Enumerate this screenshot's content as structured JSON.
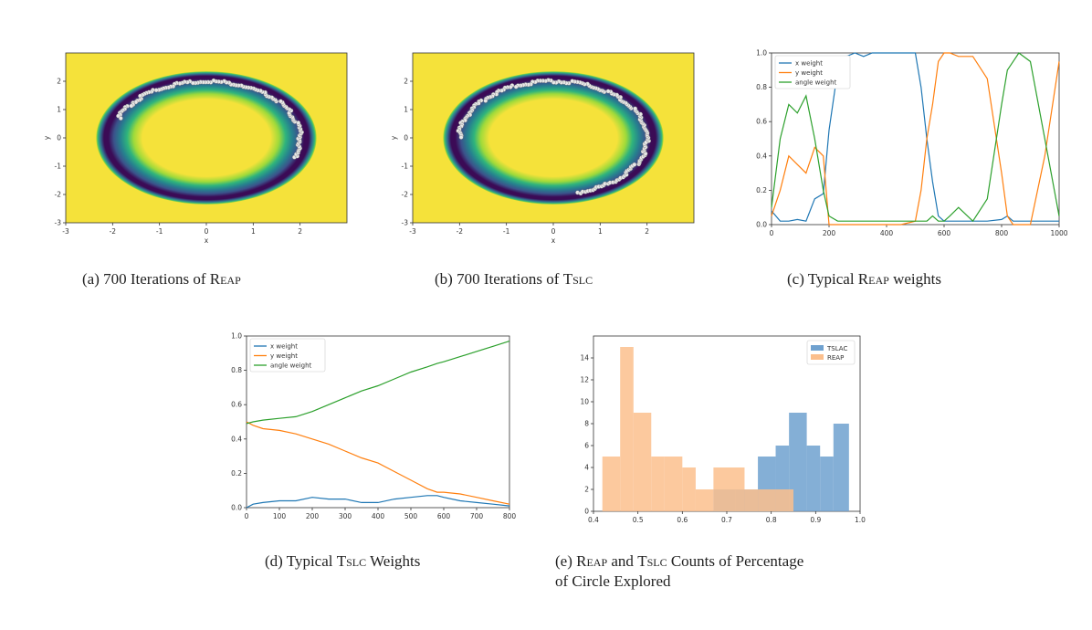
{
  "captions": {
    "a": {
      "prefix": "(a)  700 Iterations of ",
      "method": "Reap"
    },
    "b": {
      "prefix": "(b)  700 Iterations of ",
      "method": "Tslc"
    },
    "c": {
      "prefix": "(c)  Typical ",
      "method": "Reap",
      "suffix": " weights"
    },
    "d": {
      "prefix": "(d)  Typical ",
      "method": "Tslc",
      "suffix": " Weights"
    },
    "e": {
      "method1": "Reap",
      "mid": " and ",
      "method2": "Tslc",
      "line1_suffix": " Counts of Percentage",
      "line2": "of Circle Explored"
    }
  },
  "colors": {
    "x": "#1f77b4",
    "y": "#ff7f0e",
    "angle": "#2ca02c",
    "tslac_bar": "#6fa1cf",
    "reap_bar": "#fbbf8d",
    "field_bg": "#f5e23a",
    "ring": "#3b0b56"
  },
  "chart_data": [
    {
      "id": "a",
      "type": "scatter",
      "xlabel": "x",
      "ylabel": "y",
      "xlim": [
        -3,
        3
      ],
      "ylim": [
        -3,
        3
      ],
      "xticks": [
        -3,
        -2,
        -1,
        0,
        1,
        2
      ],
      "yticks": [
        -3,
        -2,
        -1,
        0,
        1,
        2
      ],
      "background": "energy field with ring-shaped low-energy region of radius 2",
      "arc_deg": [
        -20,
        160
      ]
    },
    {
      "id": "b",
      "type": "scatter",
      "xlabel": "x",
      "ylabel": "y",
      "xlim": [
        -3,
        3
      ],
      "ylim": [
        -3,
        3
      ],
      "xticks": [
        -3,
        -2,
        -1,
        0,
        1,
        2
      ],
      "yticks": [
        -3,
        -2,
        -1,
        0,
        1,
        2
      ],
      "background": "energy field with ring-shaped low-energy region of radius 2",
      "arc_deg": [
        -75,
        180
      ]
    },
    {
      "id": "c",
      "type": "line",
      "xlim": [
        0,
        1000
      ],
      "ylim": [
        0,
        1
      ],
      "xticks": [
        0,
        200,
        400,
        600,
        800,
        1000
      ],
      "yticks": [
        0.0,
        0.2,
        0.4,
        0.6,
        0.8,
        1.0
      ],
      "legend_loc": "top-left",
      "series": [
        {
          "name": "x weight",
          "x": [
            0,
            30,
            60,
            90,
            120,
            150,
            180,
            200,
            230,
            260,
            290,
            320,
            350,
            400,
            450,
            500,
            520,
            540,
            560,
            580,
            600,
            620,
            650,
            700,
            750,
            800,
            820,
            840,
            860,
            900,
            950,
            1000
          ],
          "y": [
            0.08,
            0.02,
            0.02,
            0.03,
            0.02,
            0.15,
            0.18,
            0.55,
            0.9,
            0.98,
            1.0,
            0.98,
            1.0,
            1.0,
            1.0,
            1.0,
            0.8,
            0.5,
            0.25,
            0.05,
            0.02,
            0.02,
            0.02,
            0.02,
            0.02,
            0.03,
            0.05,
            0.02,
            0.02,
            0.02,
            0.02,
            0.02
          ]
        },
        {
          "name": "y weight",
          "x": [
            0,
            30,
            60,
            90,
            120,
            150,
            180,
            200,
            230,
            260,
            290,
            320,
            350,
            400,
            450,
            500,
            520,
            540,
            560,
            580,
            600,
            620,
            650,
            700,
            750,
            800,
            820,
            840,
            860,
            900,
            950,
            1000
          ],
          "y": [
            0.05,
            0.2,
            0.4,
            0.35,
            0.3,
            0.45,
            0.4,
            0.0,
            0.0,
            0.0,
            0.0,
            0.0,
            0.0,
            0.0,
            0.0,
            0.02,
            0.2,
            0.5,
            0.7,
            0.95,
            1.0,
            1.0,
            0.98,
            0.98,
            0.85,
            0.3,
            0.05,
            0.0,
            0.0,
            0.0,
            0.4,
            0.95
          ]
        },
        {
          "name": "angle weight",
          "x": [
            0,
            30,
            60,
            90,
            120,
            150,
            180,
            200,
            230,
            260,
            290,
            320,
            350,
            400,
            450,
            500,
            520,
            540,
            560,
            580,
            600,
            620,
            650,
            700,
            750,
            800,
            820,
            840,
            860,
            900,
            950,
            1000
          ],
          "y": [
            0.1,
            0.5,
            0.7,
            0.65,
            0.75,
            0.5,
            0.2,
            0.05,
            0.02,
            0.02,
            0.02,
            0.02,
            0.02,
            0.02,
            0.02,
            0.02,
            0.02,
            0.02,
            0.05,
            0.02,
            0.02,
            0.05,
            0.1,
            0.02,
            0.15,
            0.7,
            0.9,
            0.95,
            1.0,
            0.95,
            0.5,
            0.05
          ]
        }
      ]
    },
    {
      "id": "d",
      "type": "line",
      "xlim": [
        0,
        800
      ],
      "ylim": [
        0,
        1
      ],
      "xticks": [
        0,
        100,
        200,
        300,
        400,
        500,
        600,
        700,
        800
      ],
      "yticks": [
        0.0,
        0.2,
        0.4,
        0.6,
        0.8,
        1.0
      ],
      "legend_loc": "top-left",
      "series": [
        {
          "name": "x weight",
          "x": [
            0,
            20,
            50,
            100,
            150,
            200,
            250,
            300,
            350,
            400,
            450,
            500,
            550,
            580,
            600,
            650,
            700,
            750,
            800
          ],
          "y": [
            0.0,
            0.02,
            0.03,
            0.04,
            0.04,
            0.06,
            0.05,
            0.05,
            0.03,
            0.03,
            0.05,
            0.06,
            0.07,
            0.07,
            0.06,
            0.04,
            0.03,
            0.02,
            0.01
          ]
        },
        {
          "name": "y weight",
          "x": [
            0,
            20,
            50,
            100,
            150,
            200,
            250,
            300,
            350,
            400,
            450,
            500,
            550,
            580,
            600,
            650,
            700,
            750,
            800
          ],
          "y": [
            0.5,
            0.48,
            0.46,
            0.45,
            0.43,
            0.4,
            0.37,
            0.33,
            0.29,
            0.26,
            0.21,
            0.16,
            0.11,
            0.09,
            0.09,
            0.08,
            0.06,
            0.04,
            0.02
          ]
        },
        {
          "name": "angle weight",
          "x": [
            0,
            20,
            50,
            100,
            150,
            200,
            250,
            300,
            350,
            400,
            450,
            500,
            550,
            580,
            600,
            650,
            700,
            750,
            800
          ],
          "y": [
            0.49,
            0.5,
            0.51,
            0.52,
            0.53,
            0.56,
            0.6,
            0.64,
            0.68,
            0.71,
            0.75,
            0.79,
            0.82,
            0.84,
            0.85,
            0.88,
            0.91,
            0.94,
            0.97
          ]
        }
      ]
    },
    {
      "id": "e",
      "type": "bar",
      "xlim": [
        0.4,
        1.0
      ],
      "ylim": [
        0,
        16
      ],
      "xticks": [
        0.4,
        0.5,
        0.6,
        0.7,
        0.8,
        0.9,
        1.0
      ],
      "yticks": [
        0,
        2,
        4,
        6,
        8,
        10,
        12,
        14
      ],
      "legend_loc": "top-right",
      "series": [
        {
          "name": "TSLAC",
          "bins": [
            [
              0.67,
              0.72,
              2
            ],
            [
              0.72,
              0.77,
              2
            ],
            [
              0.77,
              0.81,
              5
            ],
            [
              0.81,
              0.84,
              6
            ],
            [
              0.84,
              0.88,
              9
            ],
            [
              0.88,
              0.91,
              6
            ],
            [
              0.91,
              0.94,
              5
            ],
            [
              0.94,
              0.975,
              8
            ]
          ]
        },
        {
          "name": "REAP",
          "bins": [
            [
              0.42,
              0.46,
              5
            ],
            [
              0.46,
              0.49,
              15
            ],
            [
              0.49,
              0.53,
              9
            ],
            [
              0.53,
              0.56,
              5
            ],
            [
              0.56,
              0.6,
              5
            ],
            [
              0.6,
              0.63,
              4
            ],
            [
              0.63,
              0.67,
              2
            ],
            [
              0.67,
              0.7,
              4
            ],
            [
              0.7,
              0.74,
              4
            ],
            [
              0.74,
              0.77,
              2
            ],
            [
              0.77,
              0.81,
              2
            ],
            [
              0.81,
              0.85,
              2
            ]
          ]
        }
      ]
    }
  ]
}
